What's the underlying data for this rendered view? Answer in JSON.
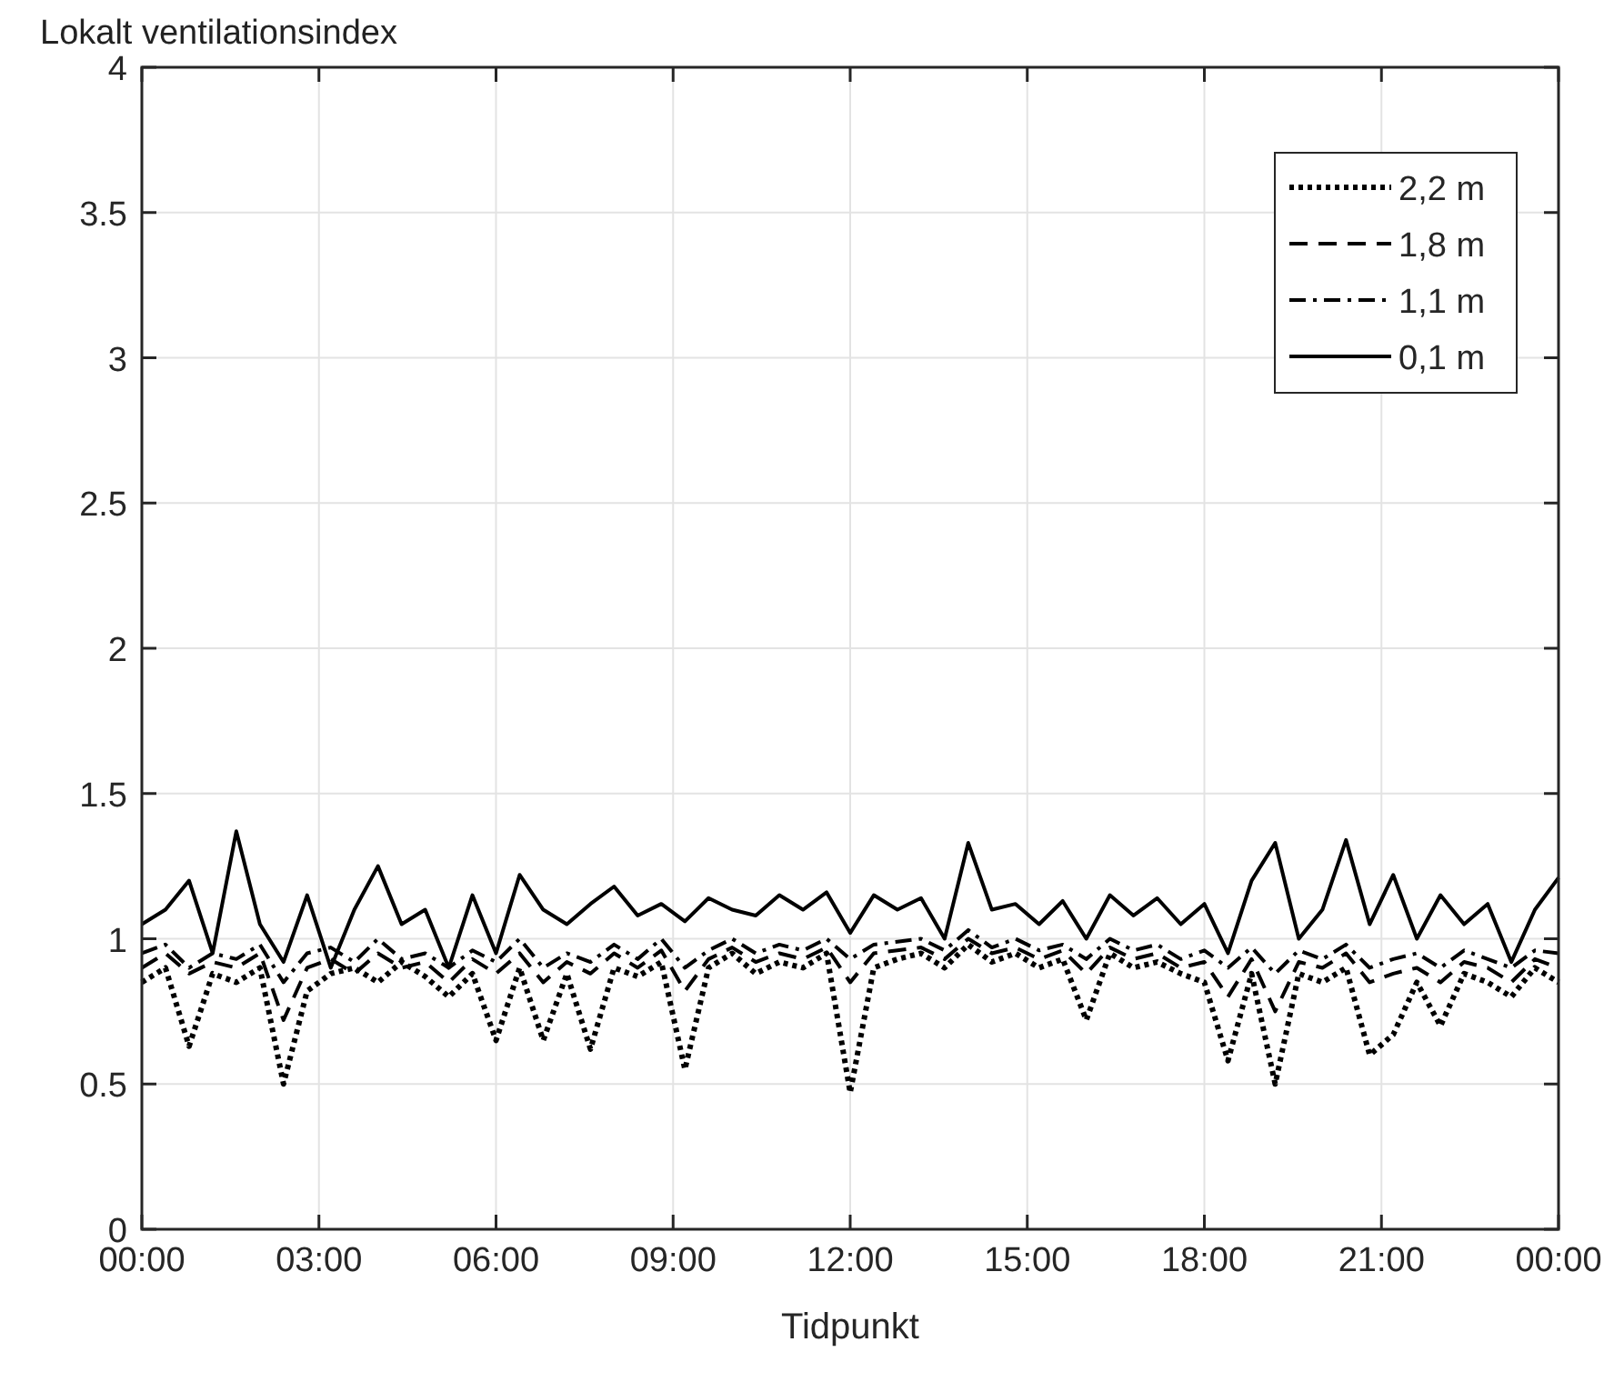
{
  "chart_data": {
    "type": "line",
    "title": "Lokalt ventilationsindex",
    "xlabel": "Tidpunkt",
    "x": [
      0,
      0.4,
      0.8,
      1.2,
      1.6,
      2,
      2.4,
      2.8,
      3.2,
      3.6,
      4,
      4.4,
      4.8,
      5.2,
      5.6,
      6,
      6.4,
      6.8,
      7.2,
      7.6,
      8,
      8.4,
      8.8,
      9.2,
      9.6,
      10,
      10.4,
      10.8,
      11.2,
      11.6,
      12,
      12.4,
      12.8,
      13.2,
      13.6,
      14,
      14.4,
      14.8,
      15.2,
      15.6,
      16,
      16.4,
      16.8,
      17.2,
      17.6,
      18,
      18.4,
      18.8,
      19.2,
      19.6,
      20,
      20.4,
      20.8,
      21.2,
      21.6,
      22,
      22.4,
      22.8,
      23.2,
      23.6,
      24
    ],
    "series": [
      {
        "name": "2,2 m",
        "color": "#000000",
        "line_style": "dotted",
        "values": [
          0.85,
          0.9,
          0.63,
          0.88,
          0.85,
          0.9,
          0.5,
          0.82,
          0.88,
          0.9,
          0.85,
          0.92,
          0.87,
          0.8,
          0.88,
          0.65,
          0.9,
          0.65,
          0.88,
          0.62,
          0.9,
          0.87,
          0.92,
          0.55,
          0.9,
          0.95,
          0.88,
          0.92,
          0.9,
          0.95,
          0.47,
          0.9,
          0.93,
          0.95,
          0.9,
          0.98,
          0.92,
          0.95,
          0.9,
          0.93,
          0.72,
          0.95,
          0.9,
          0.92,
          0.88,
          0.85,
          0.58,
          0.88,
          0.5,
          0.88,
          0.85,
          0.9,
          0.6,
          0.67,
          0.85,
          0.7,
          0.88,
          0.85,
          0.8,
          0.9,
          0.85
        ]
      },
      {
        "name": "1,8 m",
        "color": "#000000",
        "line_style": "dashed",
        "values": [
          0.9,
          0.95,
          0.88,
          0.92,
          0.9,
          0.95,
          0.72,
          0.9,
          0.93,
          0.88,
          0.95,
          0.9,
          0.92,
          0.85,
          0.93,
          0.88,
          0.95,
          0.85,
          0.92,
          0.88,
          0.95,
          0.9,
          0.96,
          0.82,
          0.93,
          0.97,
          0.92,
          0.95,
          0.93,
          0.97,
          0.85,
          0.95,
          0.96,
          0.97,
          0.93,
          1.0,
          0.95,
          0.97,
          0.93,
          0.96,
          0.88,
          0.97,
          0.93,
          0.95,
          0.9,
          0.92,
          0.8,
          0.93,
          0.75,
          0.92,
          0.9,
          0.95,
          0.85,
          0.88,
          0.9,
          0.85,
          0.92,
          0.9,
          0.85,
          0.93,
          0.9
        ]
      },
      {
        "name": "1,1 m",
        "color": "#000000",
        "line_style": "dashdot",
        "values": [
          0.95,
          0.98,
          0.9,
          0.95,
          0.93,
          0.98,
          0.85,
          0.95,
          0.97,
          0.92,
          1.0,
          0.93,
          0.95,
          0.9,
          0.96,
          0.92,
          1.0,
          0.9,
          0.95,
          0.92,
          0.98,
          0.93,
          1.0,
          0.9,
          0.96,
          1.0,
          0.95,
          0.98,
          0.96,
          1.0,
          0.93,
          0.98,
          0.99,
          1.0,
          0.96,
          1.03,
          0.97,
          1.0,
          0.96,
          0.98,
          0.93,
          1.0,
          0.96,
          0.98,
          0.93,
          0.96,
          0.9,
          0.97,
          0.88,
          0.96,
          0.93,
          0.98,
          0.9,
          0.93,
          0.95,
          0.9,
          0.96,
          0.93,
          0.9,
          0.96,
          0.95
        ]
      },
      {
        "name": "0,1 m",
        "color": "#000000",
        "line_style": "solid",
        "values": [
          1.05,
          1.1,
          1.2,
          0.95,
          1.37,
          1.05,
          0.92,
          1.15,
          0.9,
          1.1,
          1.25,
          1.05,
          1.1,
          0.9,
          1.15,
          0.95,
          1.22,
          1.1,
          1.05,
          1.12,
          1.18,
          1.08,
          1.12,
          1.06,
          1.14,
          1.1,
          1.08,
          1.15,
          1.1,
          1.16,
          1.02,
          1.15,
          1.1,
          1.14,
          1.0,
          1.33,
          1.1,
          1.12,
          1.05,
          1.13,
          1.0,
          1.15,
          1.08,
          1.14,
          1.05,
          1.12,
          0.95,
          1.2,
          1.33,
          1.0,
          1.1,
          1.34,
          1.05,
          1.22,
          1.0,
          1.15,
          1.05,
          1.12,
          0.92,
          1.1,
          1.21
        ]
      }
    ],
    "xlim": [
      0,
      24
    ],
    "xticks": [
      {
        "value": 0,
        "label": "00:00"
      },
      {
        "value": 3,
        "label": "03:00"
      },
      {
        "value": 6,
        "label": "06:00"
      },
      {
        "value": 9,
        "label": "09:00"
      },
      {
        "value": 12,
        "label": "12:00"
      },
      {
        "value": 15,
        "label": "15:00"
      },
      {
        "value": 18,
        "label": "18:00"
      },
      {
        "value": 21,
        "label": "21:00"
      },
      {
        "value": 24,
        "label": "00:00"
      }
    ],
    "ylim": [
      0,
      4
    ],
    "yticks": [
      0,
      0.5,
      1,
      1.5,
      2,
      2.5,
      3,
      3.5,
      4
    ],
    "grid": true,
    "legend": "top right",
    "marker": "none"
  }
}
